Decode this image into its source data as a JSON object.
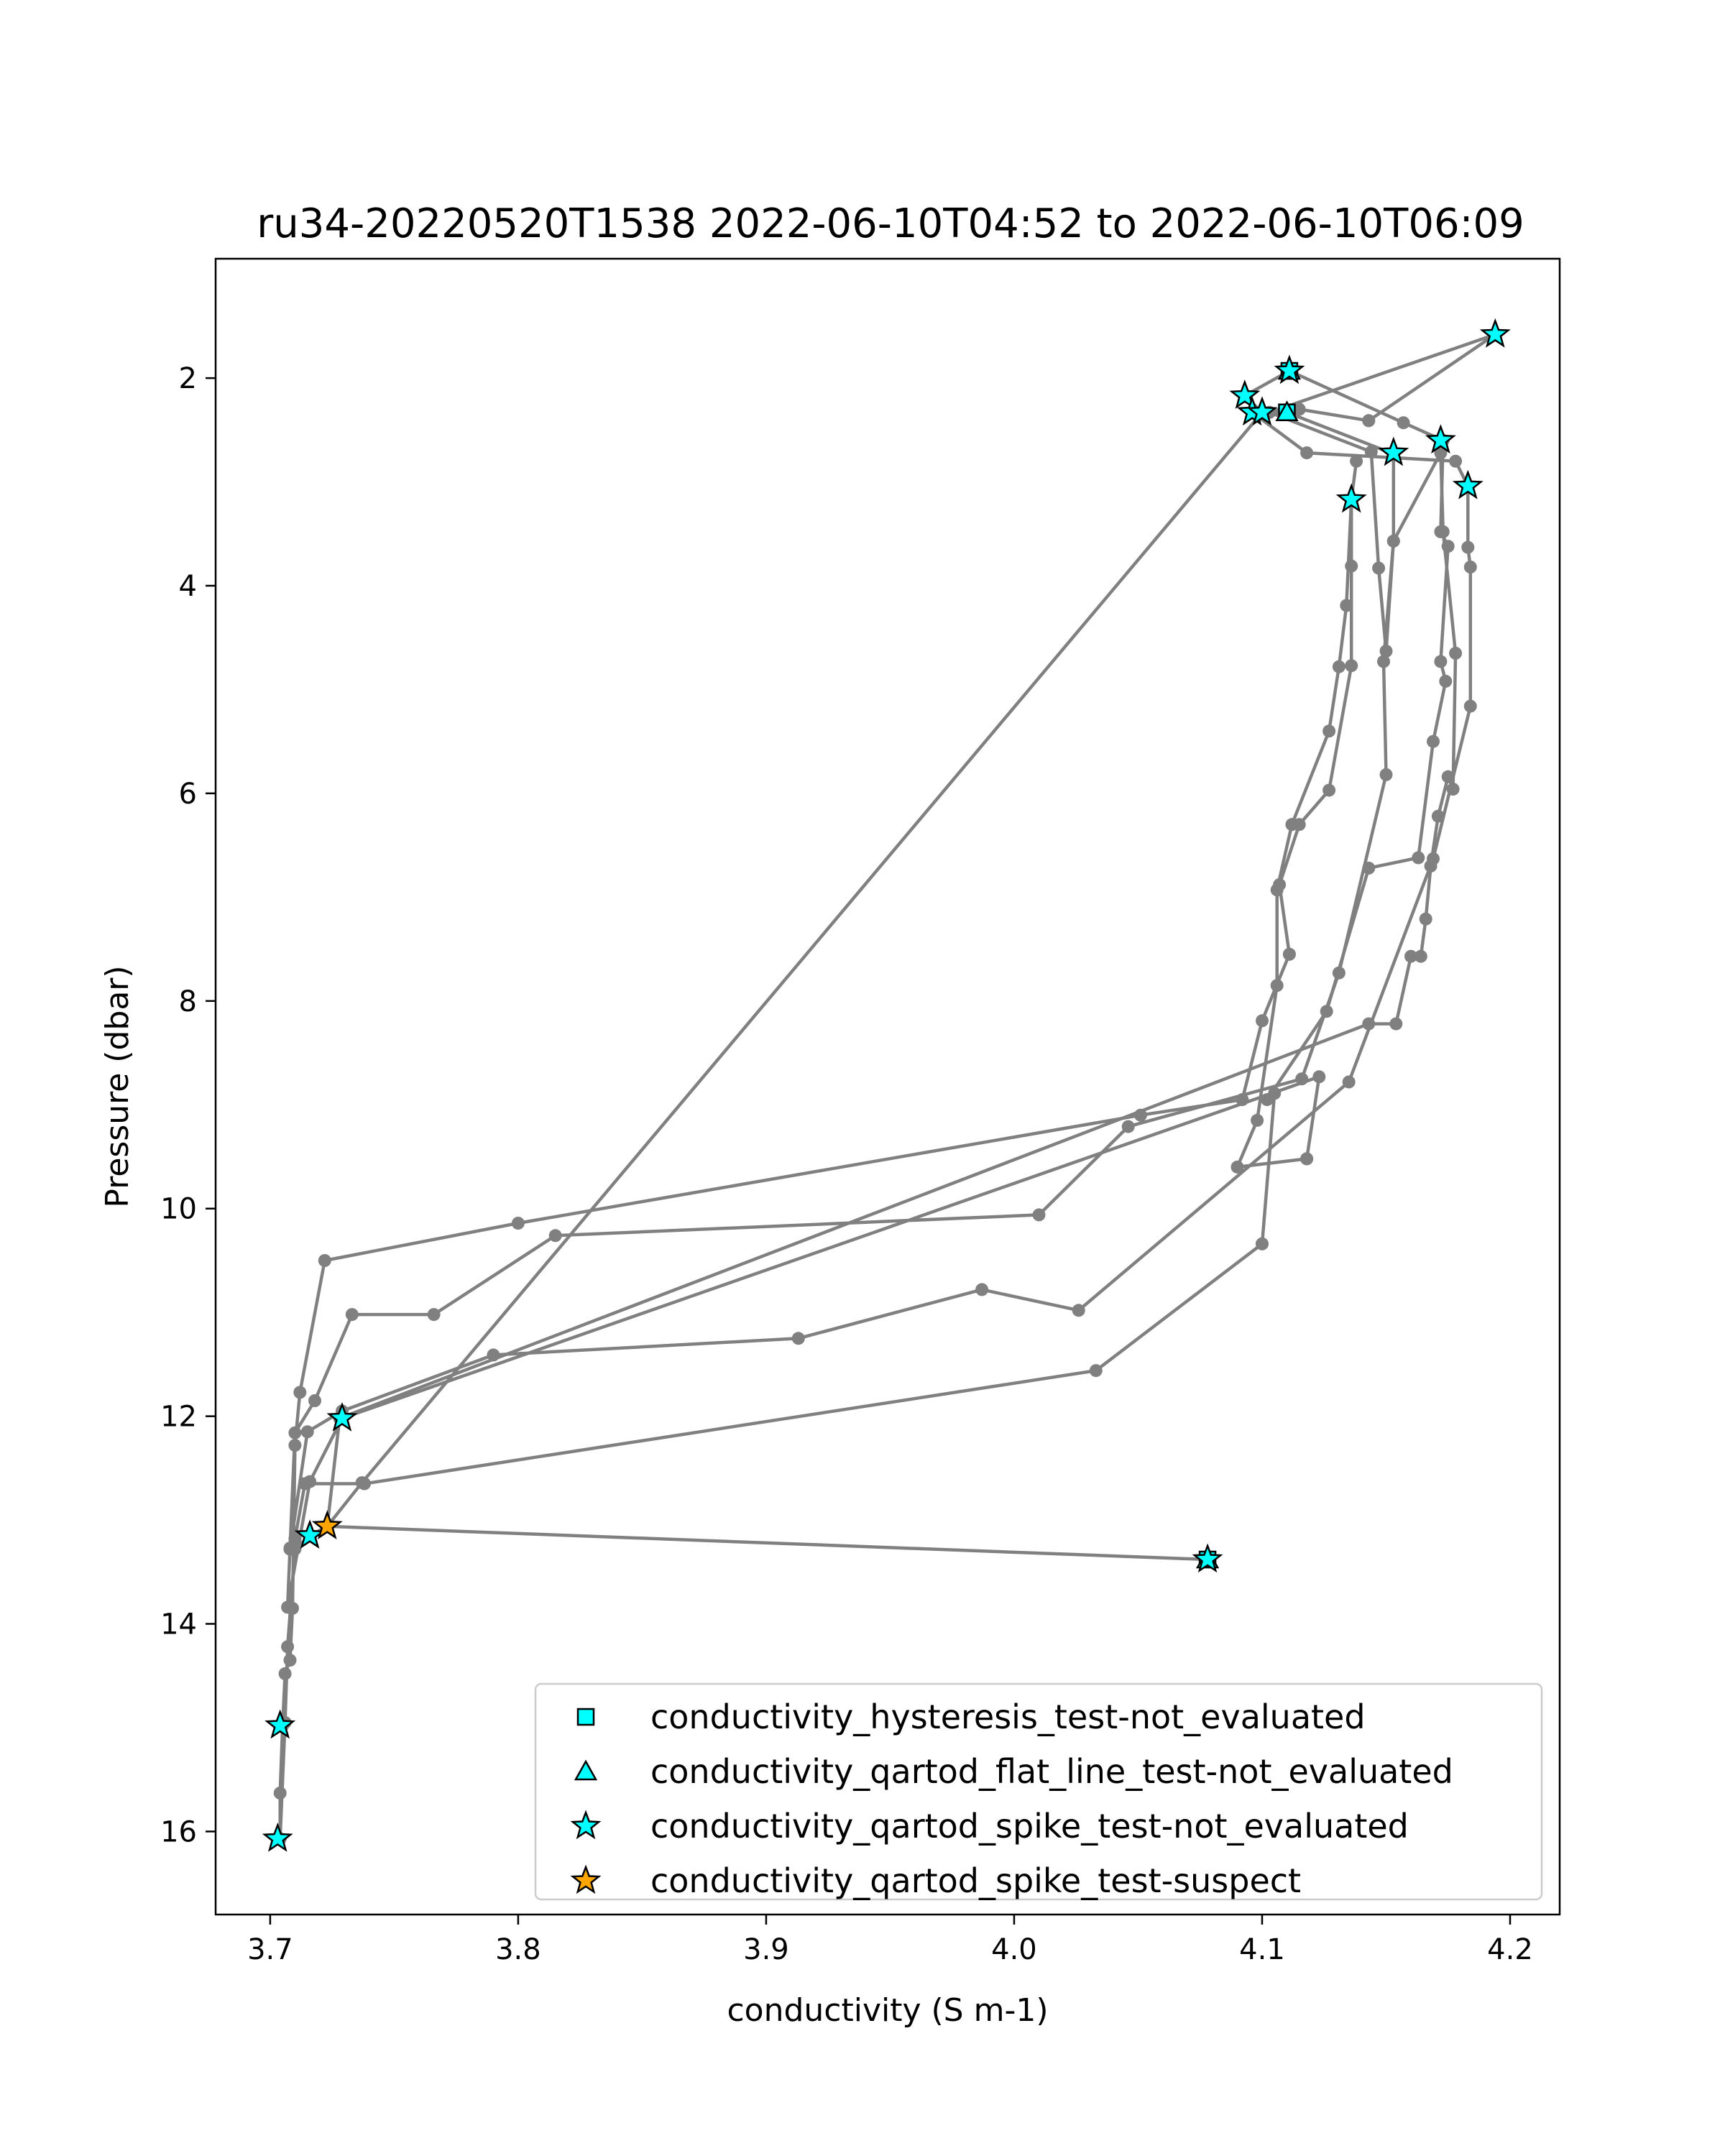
{
  "chart_data": {
    "type": "line",
    "title": "ru34-20220520T1538 2022-06-10T04:52 to 2022-06-10T06:09",
    "xlabel": "conductivity (S m-1)",
    "ylabel": "Pressure (dbar)",
    "xlim": [
      3.678,
      4.22
    ],
    "ylim": [
      16.8,
      0.85
    ],
    "y_inverted": true,
    "xticks": [
      3.7,
      3.8,
      3.9,
      4.0,
      4.1,
      4.2
    ],
    "xtick_labels": [
      "3.7",
      "3.8",
      "3.9",
      "4.0",
      "4.1",
      "4.2"
    ],
    "yticks": [
      2,
      4,
      6,
      8,
      10,
      12,
      14,
      16
    ],
    "ytick_labels": [
      "2",
      "4",
      "6",
      "8",
      "10",
      "12",
      "14",
      "16"
    ],
    "grid": false,
    "legend_position": "bottom-right",
    "line_color": "#808080",
    "series": [
      {
        "x": [
          4.078,
          3.723,
          3.716,
          3.71,
          3.707,
          3.706,
          3.704
        ],
        "y": [
          13.38,
          13.06,
          13.15,
          13.28,
          14.22,
          14.95,
          16.07
        ]
      },
      {
        "x": [
          3.704,
          3.704,
          3.705,
          3.706,
          3.708,
          3.709,
          3.71,
          3.712,
          3.722,
          3.8,
          4.051,
          4.092,
          4.1,
          4.111
        ],
        "y": [
          16.07,
          15.63,
          14.98,
          14.48,
          14.35,
          13.85,
          12.28,
          11.77,
          10.5,
          10.14,
          9.1,
          8.95,
          8.19,
          7.55
        ]
      },
      {
        "x": [
          4.111,
          4.107,
          4.115,
          4.127,
          4.136,
          4.136,
          4.136,
          4.138
        ],
        "y": [
          7.55,
          6.88,
          6.3,
          5.97,
          4.77,
          3.81,
          3.17,
          2.8
        ]
      },
      {
        "x": [
          4.136,
          4.134,
          4.131,
          4.127,
          4.112,
          4.106,
          4.106,
          4.098,
          4.09,
          4.118
        ],
        "y": [
          3.17,
          4.19,
          4.78,
          5.4,
          6.3,
          6.93,
          7.85,
          9.15,
          9.6,
          9.52
        ]
      },
      {
        "x": [
          4.118,
          4.123,
          3.729,
          3.716,
          3.707,
          3.708,
          3.71,
          3.718,
          3.733,
          3.766,
          3.815,
          4.01,
          4.046,
          4.116,
          4.131,
          4.15,
          4.149,
          4.153,
          4.153
        ],
        "y": [
          9.52,
          8.73,
          12.02,
          12.63,
          13.84,
          13.27,
          12.16,
          11.85,
          11.02,
          11.02,
          10.26,
          10.06,
          9.21,
          8.75,
          7.73,
          5.82,
          4.73,
          3.57,
          2.73
        ]
      },
      {
        "x": [
          4.153,
          4.11,
          4.1,
          4.093,
          4.111,
          4.157,
          4.173,
          4.172,
          4.175,
          4.172,
          4.174,
          4.169,
          4.163,
          4.143,
          4.126,
          4.102,
          4.105,
          4.1
        ],
        "y": [
          2.73,
          2.33,
          2.33,
          2.17,
          1.93,
          2.43,
          2.6,
          3.48,
          3.62,
          4.73,
          4.92,
          5.5,
          6.62,
          6.72,
          8.1,
          8.95,
          8.89,
          10.34
        ]
      },
      {
        "x": [
          4.1,
          4.033,
          3.738,
          3.714,
          3.71,
          3.708
        ],
        "y": [
          10.34,
          11.56,
          12.65,
          12.65,
          13.18,
          13.28
        ]
      },
      {
        "x": [
          3.708,
          3.715,
          3.729,
          3.79,
          3.913,
          3.987,
          4.026,
          4.135,
          4.169,
          4.184,
          4.184,
          4.183,
          4.183,
          4.178,
          4.118,
          4.096,
          4.115,
          4.143
        ],
        "y": [
          13.28,
          12.15,
          11.95,
          11.41,
          11.25,
          10.78,
          10.98,
          8.78,
          6.63,
          5.16,
          3.82,
          3.63,
          3.04,
          2.8,
          2.72,
          2.33,
          2.3,
          2.41
        ]
      },
      {
        "x": [
          4.143,
          4.194,
          4.103,
          4.144,
          4.147,
          4.15,
          4.153,
          4.172,
          4.173,
          4.178,
          4.177,
          4.175,
          4.171,
          4.168,
          4.166,
          4.164,
          4.16,
          4.154,
          4.143,
          3.728,
          3.723
        ],
        "y": [
          2.41,
          1.58,
          2.33,
          2.71,
          3.83,
          4.63,
          3.57,
          2.72,
          3.48,
          4.65,
          5.96,
          5.84,
          6.22,
          6.7,
          7.21,
          7.57,
          7.57,
          8.22,
          8.22,
          12.02,
          13.06
        ]
      },
      {
        "x": [
          3.723,
          3.737,
          4.1
        ],
        "y": [
          13.06,
          12.64,
          2.33
        ]
      }
    ],
    "markers": [
      {
        "name": "conductivity_hysteresis_test-not_evaluated",
        "symbol": "square",
        "color": "#00ffff",
        "x": [
          4.078,
          4.11,
          4.111
        ],
        "y": [
          13.38,
          2.33,
          1.93
        ]
      },
      {
        "name": "conductivity_qartod_flat_line_test-not_evaluated",
        "symbol": "triangle",
        "color": "#00ffff",
        "x": [
          4.078,
          4.11,
          4.111
        ],
        "y": [
          13.38,
          2.33,
          1.93
        ]
      },
      {
        "name": "conductivity_qartod_spike_test-not_evaluated",
        "symbol": "star",
        "color": "#00ffff",
        "x": [
          4.194,
          4.111,
          4.093,
          4.096,
          4.1,
          4.153,
          4.172,
          4.183,
          4.136,
          3.729,
          3.716,
          4.078,
          3.704,
          3.703
        ],
        "y": [
          1.58,
          1.93,
          2.17,
          2.33,
          2.33,
          2.72,
          2.6,
          3.04,
          3.17,
          12.02,
          13.15,
          13.38,
          14.98,
          16.07
        ]
      },
      {
        "name": "conductivity_qartod_spike_test-suspect",
        "symbol": "star",
        "color": "#ffa500",
        "x": [
          3.723
        ],
        "y": [
          13.06
        ]
      }
    ]
  }
}
